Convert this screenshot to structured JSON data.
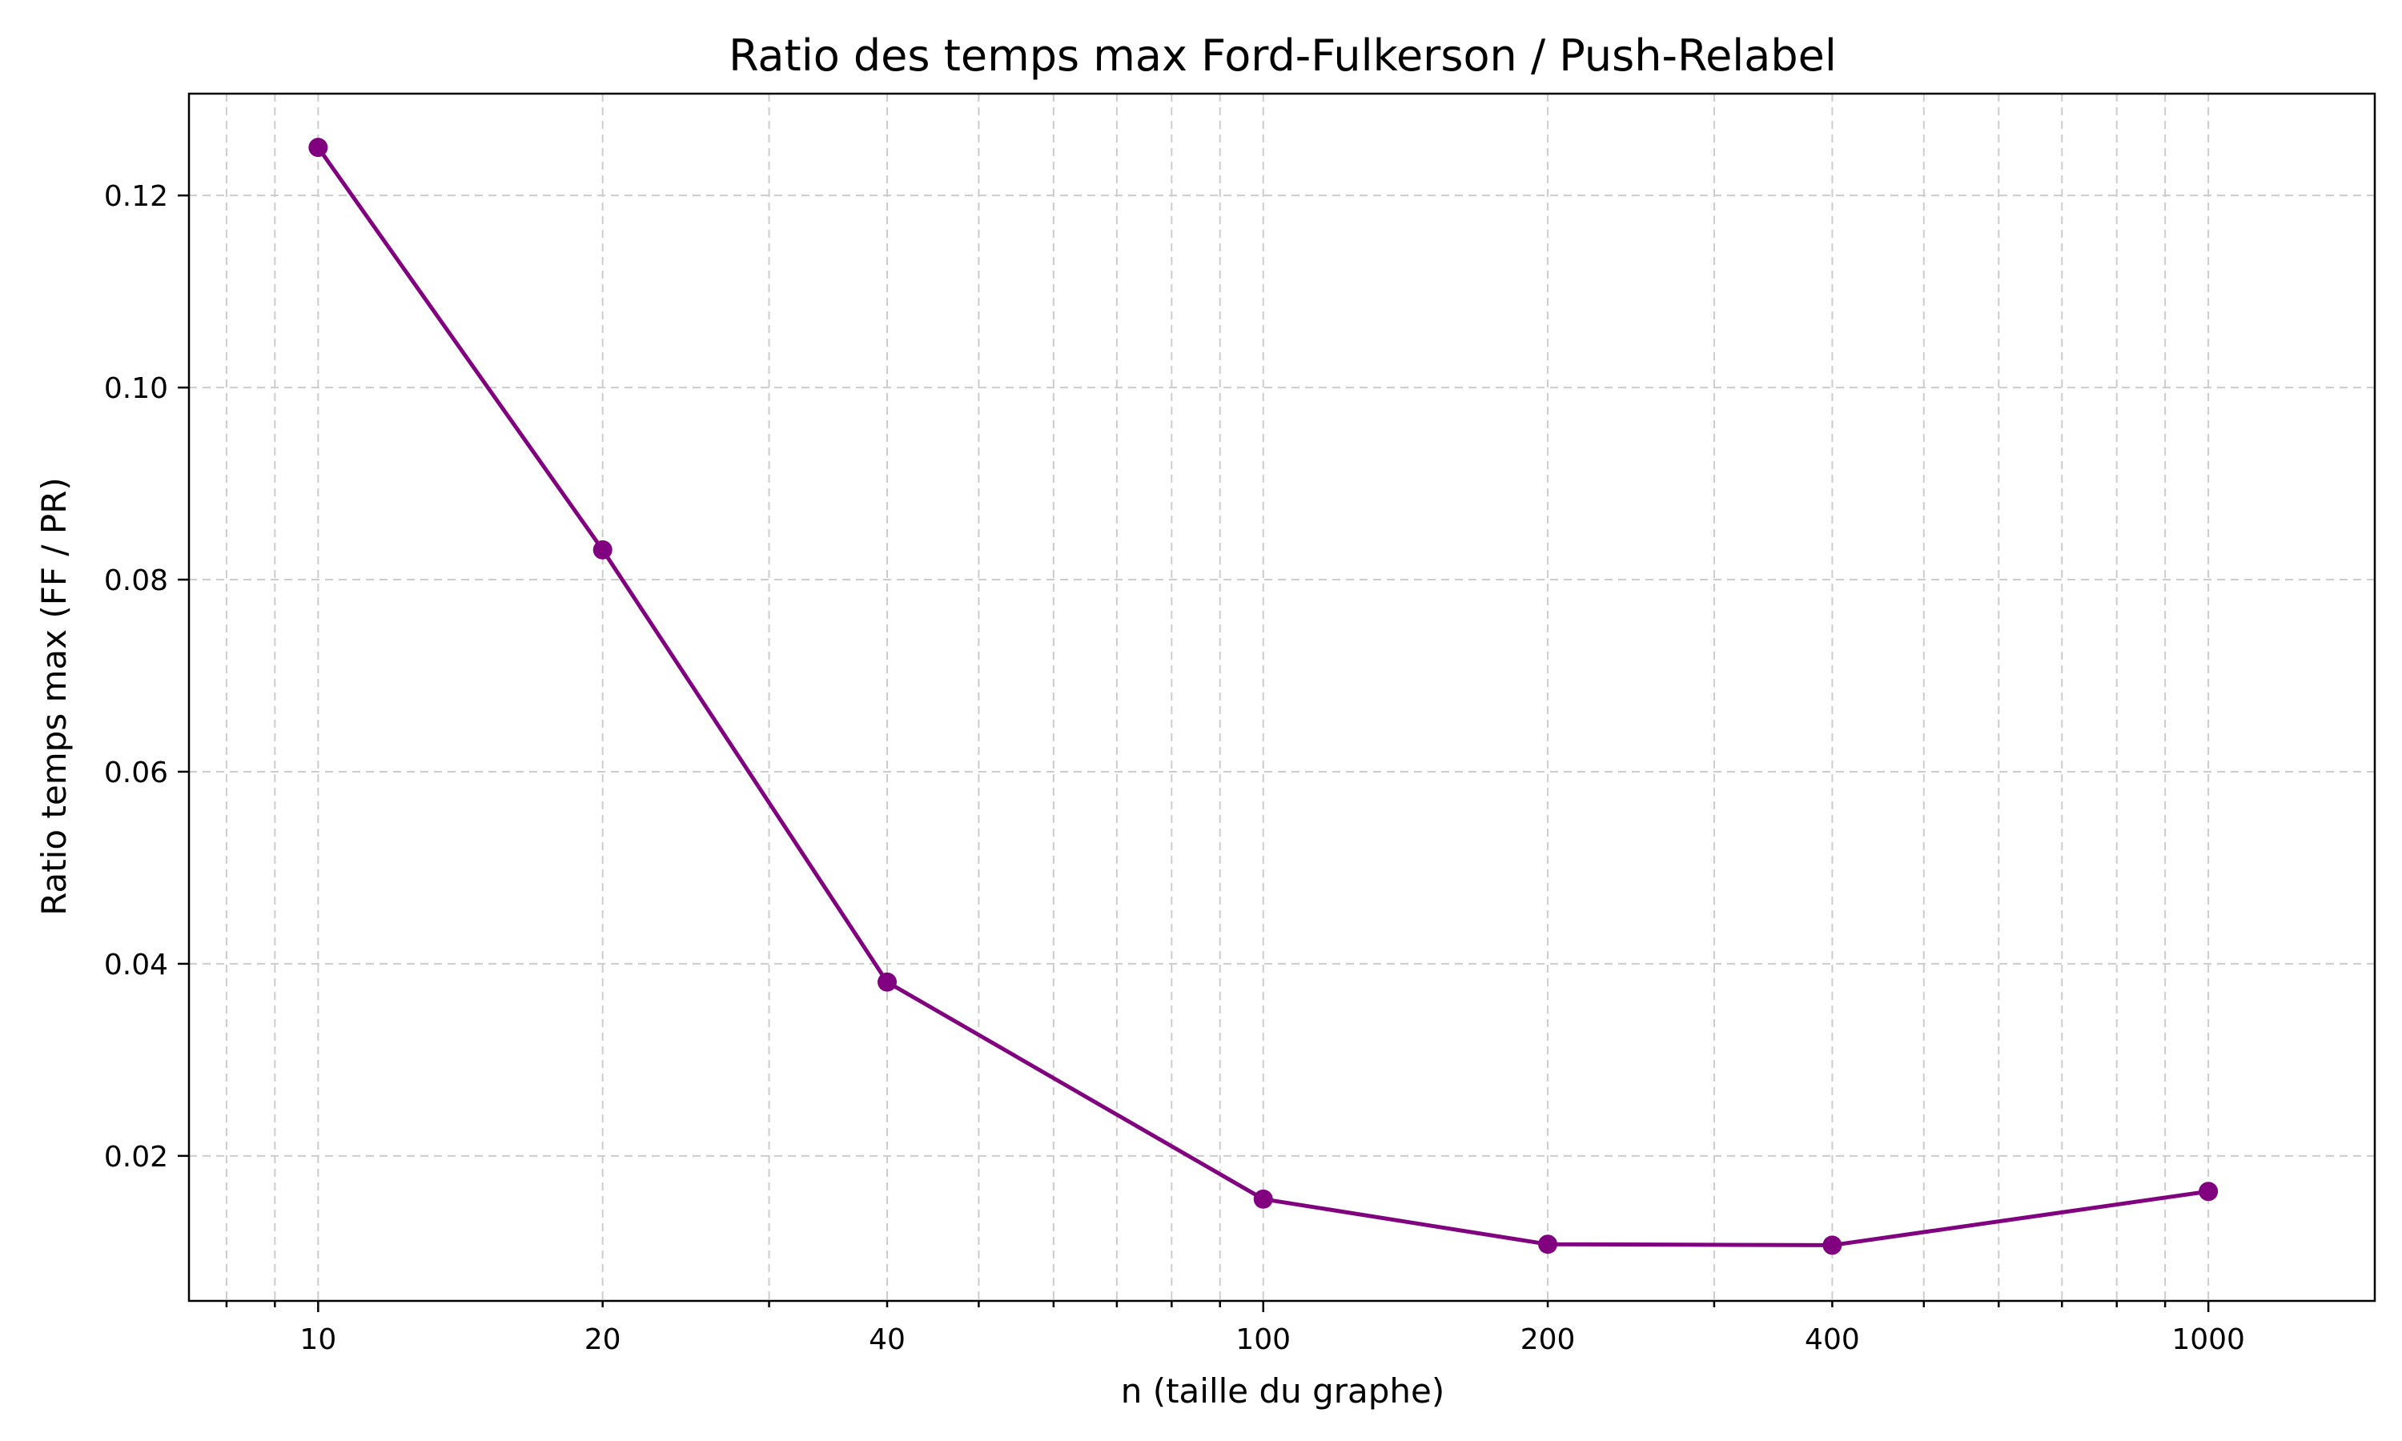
{
  "chart_data": {
    "type": "line",
    "title": "Ratio des temps max Ford-Fulkerson / Push-Relabel",
    "xlabel": "n (taille du graphe)",
    "ylabel": "Ratio temps max (FF / PR)",
    "xscale": "log",
    "xlim": [
      7.3,
      1500
    ],
    "ylim": [
      0.0049,
      0.1306
    ],
    "xticks": [
      10,
      20,
      40,
      100,
      200,
      400,
      1000
    ],
    "xtick_labels": [
      "10",
      "20",
      "40",
      "100",
      "200",
      "400",
      "1000"
    ],
    "yticks": [
      0.02,
      0.04,
      0.06,
      0.08,
      0.1,
      0.12
    ],
    "ytick_labels": [
      "0.02",
      "0.04",
      "0.06",
      "0.08",
      "0.10",
      "0.12"
    ],
    "grid": true,
    "color": "#800080",
    "x": [
      10,
      20,
      40,
      100,
      200,
      400,
      1000
    ],
    "series": [
      {
        "values": [
          0.125,
          0.0831,
          0.0381,
          0.0155,
          0.0108,
          0.0107,
          0.0163
        ]
      }
    ]
  }
}
